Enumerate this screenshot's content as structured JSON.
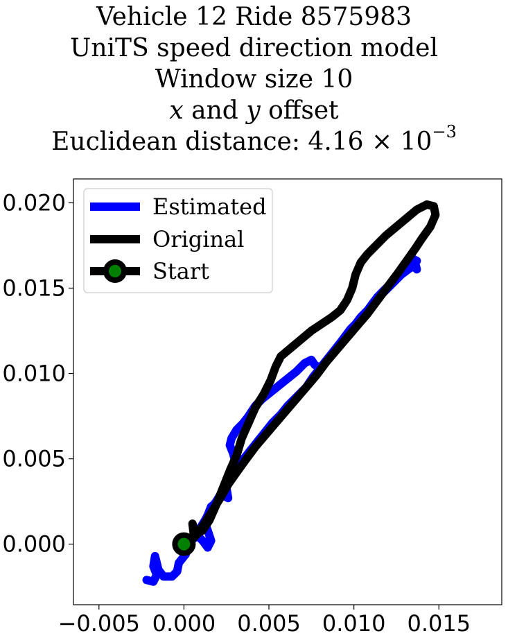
{
  "chart_data": {
    "type": "line",
    "title_lines": [
      "Vehicle 12 Ride 8575983",
      "UniTS speed direction model",
      "Window size 10"
    ],
    "title_offset": {
      "var_x": "x",
      "and": "and",
      "var_y": "y",
      "rest": "offset"
    },
    "title_distance": {
      "prefix": "Euclidean distance: 4.16 × 10",
      "exponent": "−3"
    },
    "xlim": [
      -0.0065,
      0.0187
    ],
    "ylim": [
      -0.00355,
      0.0214
    ],
    "xticks": [
      -0.005,
      0.0,
      0.005,
      0.01,
      0.015
    ],
    "xtick_labels": [
      "−0.005",
      "0.000",
      "0.005",
      "0.010",
      "0.015"
    ],
    "yticks": [
      0.0,
      0.005,
      0.01,
      0.015,
      0.02
    ],
    "ytick_labels": [
      "0.000",
      "0.005",
      "0.010",
      "0.015",
      "0.020"
    ],
    "grid": false,
    "legend_position": "upper left",
    "legend": [
      "Estimated",
      "Original",
      "Start"
    ],
    "colors": {
      "estimated": "#0000ff",
      "original": "#000000",
      "start_fill": "#008000",
      "start_edge": "#000000"
    },
    "series": [
      {
        "name": "Estimated",
        "points": [
          [
            -0.0022,
            -0.0021
          ],
          [
            -0.0018,
            -0.0022
          ],
          [
            -0.0016,
            -0.0018
          ],
          [
            -0.0018,
            -0.0013
          ],
          [
            -0.0017,
            -0.0007
          ],
          [
            -0.0015,
            -0.0015
          ],
          [
            -0.0012,
            -0.0019
          ],
          [
            -0.0007,
            -0.0019
          ],
          [
            -0.0004,
            -0.0016
          ],
          [
            -0.0003,
            -0.0011
          ],
          [
            0.0001,
            -0.0006
          ],
          [
            0.0004,
            0.0002
          ],
          [
            0.0008,
            0.0005
          ],
          [
            0.0011,
            0.0002
          ],
          [
            0.0014,
            -0.0002
          ],
          [
            0.0016,
            0.0002
          ],
          [
            0.0014,
            0.0008
          ],
          [
            0.0012,
            0.0013
          ],
          [
            0.0014,
            0.0017
          ],
          [
            0.0016,
            0.0022
          ],
          [
            0.002,
            0.0025
          ],
          [
            0.0022,
            0.0029
          ],
          [
            0.0026,
            0.0027
          ],
          [
            0.0025,
            0.0033
          ],
          [
            0.0028,
            0.0039
          ],
          [
            0.0031,
            0.0045
          ],
          [
            0.0029,
            0.0053
          ],
          [
            0.0027,
            0.0058
          ],
          [
            0.0028,
            0.0062
          ],
          [
            0.0031,
            0.0067
          ],
          [
            0.0035,
            0.0071
          ],
          [
            0.0038,
            0.0075
          ],
          [
            0.0042,
            0.0081
          ],
          [
            0.0046,
            0.0085
          ],
          [
            0.0051,
            0.0089
          ],
          [
            0.0056,
            0.0093
          ],
          [
            0.0061,
            0.0097
          ],
          [
            0.0066,
            0.0101
          ],
          [
            0.0071,
            0.0106
          ],
          [
            0.0075,
            0.0108
          ],
          [
            0.0077,
            0.0105
          ],
          [
            0.0081,
            0.0103
          ],
          [
            0.0083,
            0.0106
          ],
          [
            0.0086,
            0.011
          ],
          [
            0.0089,
            0.0114
          ],
          [
            0.0092,
            0.0118
          ],
          [
            0.0095,
            0.0122
          ],
          [
            0.0098,
            0.0126
          ],
          [
            0.0101,
            0.0129
          ],
          [
            0.0104,
            0.0133
          ],
          [
            0.0108,
            0.0137
          ],
          [
            0.0111,
            0.0141
          ],
          [
            0.0114,
            0.0145
          ],
          [
            0.0117,
            0.0148
          ],
          [
            0.012,
            0.0151
          ],
          [
            0.0124,
            0.0155
          ],
          [
            0.0128,
            0.0158
          ],
          [
            0.0132,
            0.0161
          ],
          [
            0.0135,
            0.0163
          ],
          [
            0.0137,
            0.0161
          ],
          [
            0.0136,
            0.0165
          ],
          [
            0.0135,
            0.0167
          ],
          [
            0.0137,
            0.0166
          ],
          [
            0.0133,
            0.0162
          ],
          [
            0.0128,
            0.0158
          ],
          [
            0.0124,
            0.0154
          ],
          [
            0.012,
            0.015
          ],
          [
            0.0116,
            0.0146
          ],
          [
            0.0112,
            0.0141
          ],
          [
            0.0108,
            0.0137
          ],
          [
            0.0104,
            0.0132
          ],
          [
            0.01,
            0.0128
          ],
          [
            0.0096,
            0.0123
          ],
          [
            0.0092,
            0.0118
          ],
          [
            0.0088,
            0.0113
          ],
          [
            0.0084,
            0.0108
          ],
          [
            0.008,
            0.0103
          ],
          [
            0.0076,
            0.0098
          ],
          [
            0.0072,
            0.0092
          ],
          [
            0.0066,
            0.0086
          ],
          [
            0.0061,
            0.0081
          ],
          [
            0.0057,
            0.0076
          ],
          [
            0.0052,
            0.0071
          ],
          [
            0.0048,
            0.0066
          ],
          [
            0.0044,
            0.0061
          ],
          [
            0.004,
            0.0056
          ],
          [
            0.0036,
            0.0051
          ],
          [
            0.0032,
            0.0046
          ],
          [
            0.0028,
            0.004
          ],
          [
            0.0025,
            0.0035
          ],
          [
            0.0022,
            0.003
          ],
          [
            0.0019,
            0.0025
          ],
          [
            0.0016,
            0.0021
          ],
          [
            0.0013,
            0.0015
          ],
          [
            0.001,
            0.001
          ],
          [
            0.0007,
            0.0006
          ],
          [
            0.0005,
            0.0003
          ],
          [
            0.0003,
            0.0001
          ]
        ]
      },
      {
        "name": "Original",
        "points": [
          [
            0.0,
            0.0
          ],
          [
            0.0004,
            0.0002
          ],
          [
            0.0008,
            0.0006
          ],
          [
            0.0012,
            0.0012
          ],
          [
            0.0017,
            0.002
          ],
          [
            0.0022,
            0.0028
          ],
          [
            0.0026,
            0.0035
          ],
          [
            0.0031,
            0.0042
          ],
          [
            0.0036,
            0.0049
          ],
          [
            0.0042,
            0.0057
          ],
          [
            0.0048,
            0.0064
          ],
          [
            0.0054,
            0.0071
          ],
          [
            0.006,
            0.0078
          ],
          [
            0.0066,
            0.0085
          ],
          [
            0.0072,
            0.0092
          ],
          [
            0.0078,
            0.0099
          ],
          [
            0.0084,
            0.0107
          ],
          [
            0.009,
            0.0114
          ],
          [
            0.0096,
            0.0121
          ],
          [
            0.0102,
            0.0128
          ],
          [
            0.0108,
            0.0135
          ],
          [
            0.0114,
            0.0143
          ],
          [
            0.012,
            0.0151
          ],
          [
            0.0126,
            0.0159
          ],
          [
            0.0131,
            0.0166
          ],
          [
            0.0136,
            0.0173
          ],
          [
            0.014,
            0.0179
          ],
          [
            0.0145,
            0.0186
          ],
          [
            0.0148,
            0.0193
          ],
          [
            0.0147,
            0.0198
          ],
          [
            0.0143,
            0.0199
          ],
          [
            0.0137,
            0.0196
          ],
          [
            0.0131,
            0.0191
          ],
          [
            0.0125,
            0.0186
          ],
          [
            0.0119,
            0.0181
          ],
          [
            0.0113,
            0.0175
          ],
          [
            0.0108,
            0.017
          ],
          [
            0.0104,
            0.0165
          ],
          [
            0.0101,
            0.0158
          ],
          [
            0.0099,
            0.015
          ],
          [
            0.0096,
            0.0143
          ],
          [
            0.0092,
            0.0137
          ],
          [
            0.0087,
            0.0133
          ],
          [
            0.0081,
            0.0129
          ],
          [
            0.0075,
            0.0125
          ],
          [
            0.0069,
            0.012
          ],
          [
            0.0063,
            0.0115
          ],
          [
            0.0057,
            0.011
          ],
          [
            0.0054,
            0.0104
          ],
          [
            0.0051,
            0.0096
          ],
          [
            0.0047,
            0.0088
          ],
          [
            0.0042,
            0.008
          ],
          [
            0.0038,
            0.0071
          ],
          [
            0.0034,
            0.0062
          ],
          [
            0.0031,
            0.0052
          ],
          [
            0.0027,
            0.0043
          ],
          [
            0.0023,
            0.0033
          ],
          [
            0.0019,
            0.0023
          ],
          [
            0.0015,
            0.0014
          ],
          [
            0.0011,
            0.0008
          ],
          [
            0.0007,
            0.0006
          ],
          [
            0.0005,
            0.0012
          ],
          [
            0.0006,
            0.0004
          ],
          [
            0.0003,
            0.0001
          ],
          [
            0.0,
            0.0
          ]
        ]
      }
    ],
    "start_point": [
      0.0,
      0.0
    ]
  }
}
